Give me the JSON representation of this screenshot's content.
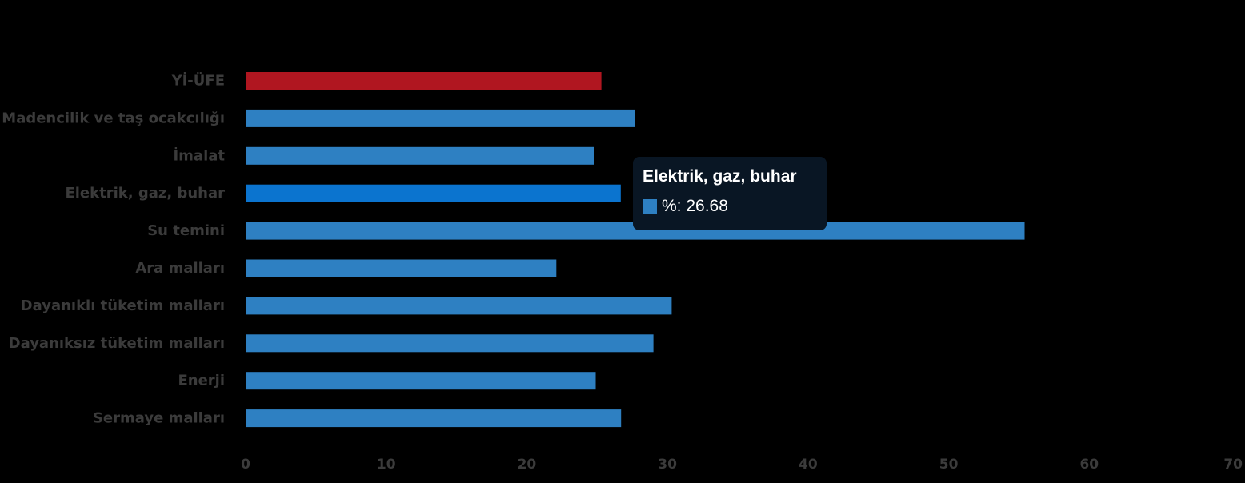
{
  "chart_data": {
    "type": "bar",
    "orientation": "horizontal",
    "title": "",
    "xlabel": "",
    "ylabel": "",
    "categories": [
      "Yİ-ÜFE",
      "Madencilik ve taş ocakcılığı",
      "İmalat",
      "Elektrik, gaz, buhar",
      "Su temini",
      "Ara malları",
      "Dayanıklı tüketim malları",
      "Dayanıksız tüketim malları",
      "Enerji",
      "Sermaye malları"
    ],
    "series": [
      {
        "values": [
          25.3,
          27.7,
          24.8,
          26.68,
          55.4,
          22.1,
          30.3,
          29.0,
          24.9,
          26.7
        ]
      }
    ],
    "bar_colors": [
      "#b01620",
      "#2e80c2",
      "#2e80c2",
      "#0b74cf",
      "#2e80c2",
      "#2e80c2",
      "#2e80c2",
      "#2e80c2",
      "#2e80c2",
      "#2e80c2"
    ],
    "xlim": [
      0,
      70
    ],
    "xticks": [
      0,
      10,
      20,
      30,
      40,
      50,
      60,
      70
    ],
    "grid": false,
    "legend": "none"
  },
  "tooltip": {
    "title": "Elektrik, gaz, buhar",
    "text": "%: 26.68",
    "swatch_color": "#2e80c2"
  }
}
